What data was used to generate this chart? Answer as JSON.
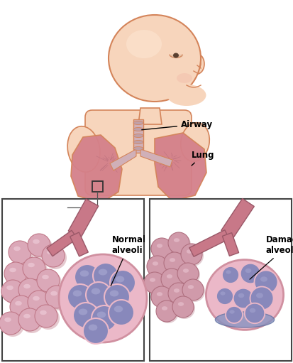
{
  "background_color": "#ffffff",
  "skin_light": "#f7d5bc",
  "skin_mid": "#f0b898",
  "skin_outline": "#d4845a",
  "lung_pink": "#d4808a",
  "lung_dark": "#b86070",
  "airway_tube": "#c06878",
  "airway_dark": "#9a4858",
  "alveoli_outer": "#d090a0",
  "alveoli_pink": "#e0a8b8",
  "alveoli_inner": "#8888bb",
  "alveoli_inner2": "#9898cc",
  "alveoli_wall": "#ebb8c8",
  "tube_red": "#c06070",
  "tube_dark": "#a04858",
  "box_color": "#333333",
  "line_color": "#555555",
  "label_airway": "Airway",
  "label_lung": "Lung",
  "label_normal": "Normal\nalveoli",
  "label_damaged": "Damaged\nalveoli",
  "fig_width": 4.14,
  "fig_height": 5.11,
  "dpi": 100
}
